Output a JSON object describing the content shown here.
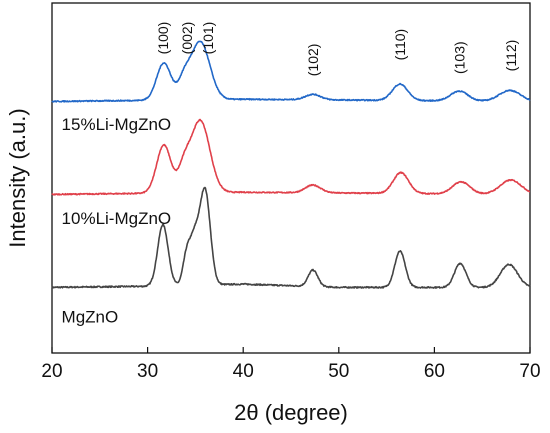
{
  "chart_data": {
    "type": "line",
    "title": "",
    "xlabel": "2θ (degree)",
    "ylabel": "Intensity (a.u.)",
    "xlim": [
      20,
      70
    ],
    "ylim": [
      0,
      3.2
    ],
    "xticks": [
      "20",
      "30",
      "40",
      "50",
      "60",
      "70"
    ],
    "yticks": [],
    "grid": false,
    "legend": "none",
    "series": [
      {
        "name": "MgZnO",
        "color": "#444444",
        "offset": 0.6,
        "label_x": 21.0,
        "label_y": 0.28,
        "noise": 0.006,
        "baseline": [
          [
            20,
            0.0
          ],
          [
            30,
            0.01
          ],
          [
            40,
            0.03
          ],
          [
            50,
            0.0
          ],
          [
            60,
            0.0
          ],
          [
            70,
            0.0
          ]
        ],
        "peaks": [
          [
            31.6,
            0.56,
            0.55
          ],
          [
            34.1,
            0.28,
            0.4
          ],
          [
            34.9,
            0.38,
            0.45
          ],
          [
            36.0,
            0.87,
            0.55
          ],
          [
            47.3,
            0.15,
            0.5
          ],
          [
            56.4,
            0.33,
            0.55
          ],
          [
            62.7,
            0.22,
            0.6
          ],
          [
            67.8,
            0.21,
            0.9
          ]
        ]
      },
      {
        "name": "10%Li-MgZnO",
        "color": "#e0404a",
        "offset": 1.45,
        "label_x": 21.0,
        "label_y": 1.18,
        "noise": 0.005,
        "baseline": [
          [
            20,
            0.0
          ],
          [
            40,
            0.02
          ],
          [
            70,
            0.0
          ]
        ],
        "peaks": [
          [
            31.7,
            0.44,
            0.75
          ],
          [
            33.8,
            0.2,
            0.6
          ],
          [
            35.5,
            0.66,
            1.0
          ],
          [
            47.3,
            0.07,
            0.8
          ],
          [
            56.5,
            0.19,
            0.8
          ],
          [
            62.8,
            0.11,
            0.9
          ],
          [
            68.0,
            0.13,
            1.1
          ]
        ]
      },
      {
        "name": "15%Li-MgZnO",
        "color": "#2268c8",
        "offset": 2.3,
        "label_x": 21.0,
        "label_y": 2.04,
        "noise": 0.005,
        "baseline": [
          [
            20,
            0.0
          ],
          [
            40,
            0.02
          ],
          [
            70,
            0.0
          ]
        ],
        "peaks": [
          [
            31.7,
            0.34,
            0.75
          ],
          [
            33.8,
            0.16,
            0.6
          ],
          [
            35.5,
            0.53,
            1.0
          ],
          [
            47.3,
            0.05,
            0.8
          ],
          [
            56.4,
            0.15,
            0.8
          ],
          [
            62.6,
            0.09,
            0.9
          ],
          [
            67.9,
            0.1,
            1.1
          ]
        ]
      }
    ],
    "annotations": [
      {
        "text": "(100)",
        "x": 31.6,
        "y": 2.88
      },
      {
        "text": "(002)",
        "x": 34.1,
        "y": 2.88
      },
      {
        "text": "(101)",
        "x": 36.3,
        "y": 2.88
      },
      {
        "text": "(102)",
        "x": 47.3,
        "y": 2.68
      },
      {
        "text": "(110)",
        "x": 56.4,
        "y": 2.82
      },
      {
        "text": "(103)",
        "x": 62.6,
        "y": 2.7
      },
      {
        "text": "(112)",
        "x": 68.0,
        "y": 2.72
      }
    ]
  }
}
